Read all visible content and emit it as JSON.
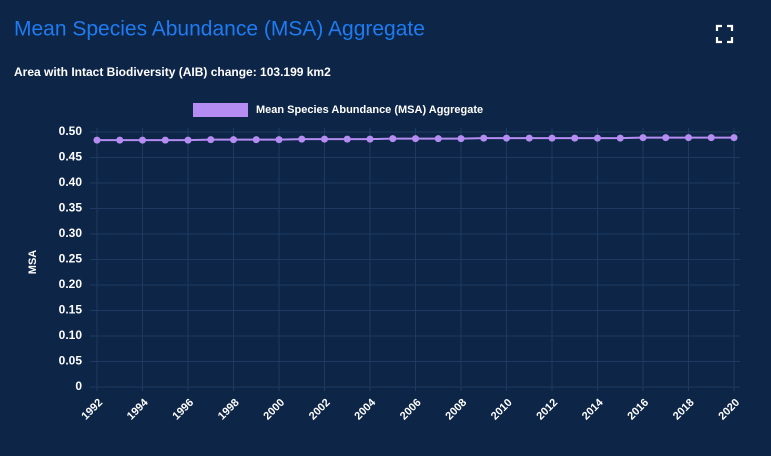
{
  "chart_data": {
    "type": "line",
    "title": "Mean Species Abundance (MSA) Aggregate",
    "subtitle": "Area with Intact Biodiversity (AIB) change: 103.199 km2",
    "ylabel": "MSA",
    "x": [
      1992,
      1993,
      1994,
      1995,
      1996,
      1997,
      1998,
      1999,
      2000,
      2001,
      2002,
      2003,
      2004,
      2005,
      2006,
      2007,
      2008,
      2009,
      2010,
      2011,
      2012,
      2013,
      2014,
      2015,
      2016,
      2017,
      2018,
      2019,
      2020
    ],
    "xlim": [
      1992,
      2020
    ],
    "xticks": [
      1992,
      1994,
      1996,
      1998,
      2000,
      2002,
      2004,
      2006,
      2008,
      2010,
      2012,
      2014,
      2016,
      2018,
      2020
    ],
    "series": [
      {
        "name": "Mean Species Abundance (MSA) Aggregate",
        "color": "#b48cf2",
        "values": [
          0.484,
          0.484,
          0.484,
          0.484,
          0.484,
          0.485,
          0.485,
          0.485,
          0.485,
          0.486,
          0.486,
          0.486,
          0.486,
          0.487,
          0.487,
          0.487,
          0.487,
          0.488,
          0.488,
          0.488,
          0.488,
          0.488,
          0.488,
          0.488,
          0.489,
          0.489,
          0.489,
          0.489,
          0.489
        ]
      }
    ],
    "ylim": [
      0,
      0.5
    ],
    "yticks": [
      0,
      0.05,
      {
        "value": 0.1,
        "label": "0.10"
      },
      0.15,
      {
        "value": 0.2,
        "label": "0.20"
      },
      0.25,
      {
        "value": 0.3,
        "label": "0.30"
      },
      0.35,
      {
        "value": 0.4,
        "label": "0.40"
      },
      0.45,
      {
        "value": 0.5,
        "label": "0.50"
      }
    ],
    "grid": true,
    "legend": "top"
  }
}
